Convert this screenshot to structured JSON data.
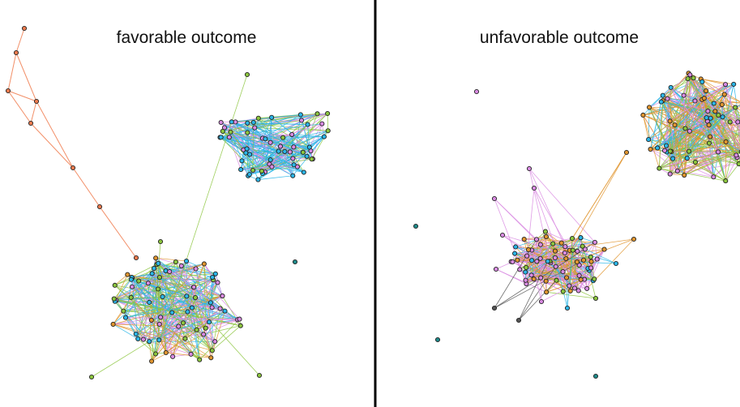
{
  "panels": [
    {
      "title": "favorable outcome"
    },
    {
      "title": "unfavorable outcome"
    }
  ]
}
